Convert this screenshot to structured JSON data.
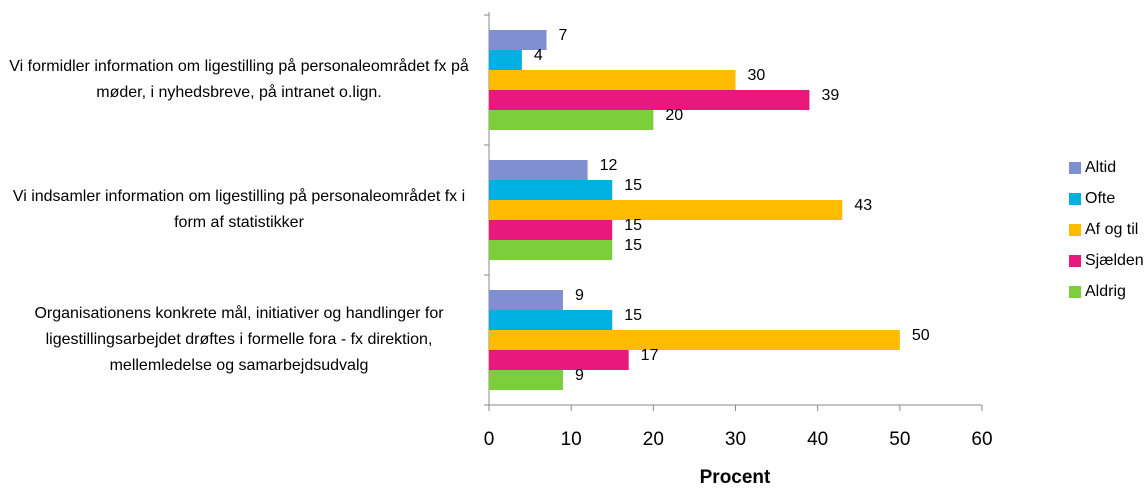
{
  "chart_data": {
    "type": "hbar",
    "x_label": "Procent",
    "categories": [
      "Vi formidler information om ligestilling på personaleområdet fx på møder, i nyhedsbreve, på intranet o.lign.",
      "Vi indsamler information om ligestilling på personaleområdet fx i form af statistikker",
      "Organisationens konkrete mål, initiativer og handlinger for ligestillingsarbejdet drøftes i formelle fora - fx direktion, mellemledelse og samarbejdsudvalg"
    ],
    "series": [
      {
        "name": "Altid",
        "color": "#7f8fd0",
        "values": [
          7,
          12,
          9
        ]
      },
      {
        "name": "Ofte",
        "color": "#00b0e0",
        "values": [
          4,
          15,
          15
        ]
      },
      {
        "name": "Af og til",
        "color": "#ffbb00",
        "values": [
          30,
          43,
          50
        ]
      },
      {
        "name": "Sjældent",
        "color": "#e8197a",
        "values": [
          39,
          15,
          17
        ]
      },
      {
        "name": "Aldrig",
        "color": "#7ccf3a",
        "values": [
          20,
          15,
          9
        ]
      }
    ],
    "xlim": [
      0,
      60
    ],
    "xticks": [
      0,
      10,
      20,
      30,
      40,
      50,
      60
    ],
    "legend": "right"
  }
}
